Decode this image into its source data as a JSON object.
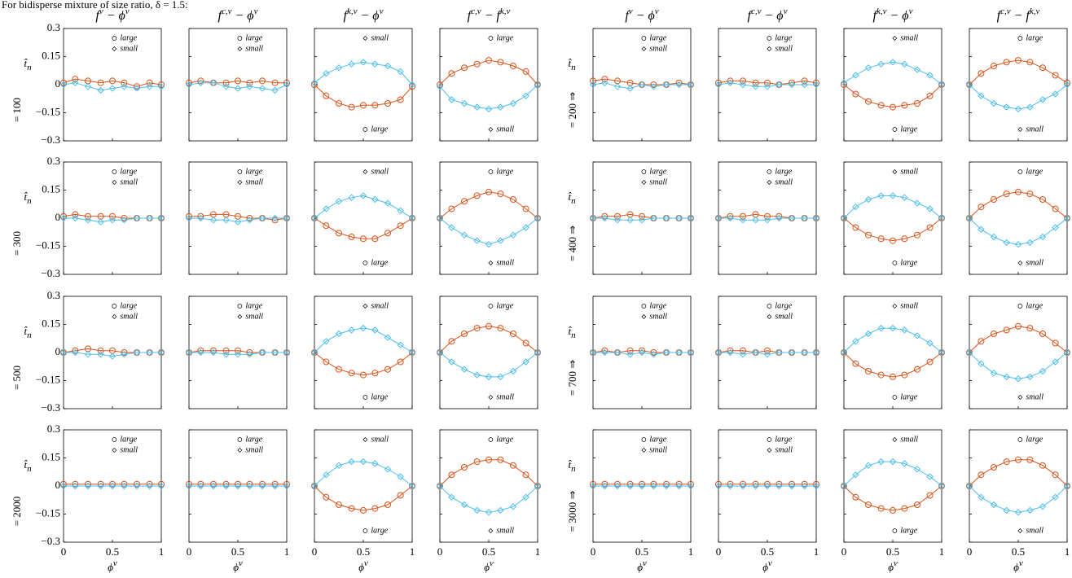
{
  "chart_data": {
    "type": "scatter-grid",
    "title": "For bidisperse mixture of size ratio, δ = 1.5:",
    "xlabel": [
      "ϕ",
      "ν"
    ],
    "row_symbol": [
      "t̂",
      "n"
    ],
    "xlim": [
      0,
      1
    ],
    "ylim": [
      -0.3,
      0.3
    ],
    "xticks": [
      0,
      0.5,
      1
    ],
    "yticks": [
      {
        "value": -0.3,
        "label": "−0.3"
      },
      {
        "value": -0.15,
        "label": "−0.15"
      },
      0,
      0.15,
      0.3
    ],
    "columns": [
      {
        "title": [
          "f",
          "ν",
          " − ϕ",
          "ν"
        ],
        "legend": [
          "top",
          "top"
        ]
      },
      {
        "title": [
          "f",
          "c,ν",
          " − ϕ",
          "ν"
        ],
        "legend": [
          "top",
          "top"
        ]
      },
      {
        "title": [
          "f",
          "k,ν",
          " − ϕ",
          "ν"
        ],
        "legend": [
          "bottom",
          "top"
        ]
      },
      {
        "title": [
          "f",
          "c,ν",
          " − f",
          "k,ν"
        ],
        "legend": [
          "top",
          "bottom"
        ]
      }
    ],
    "rows": [
      [
        "= 100",
        "= 200 ⇒"
      ],
      [
        "= 300",
        "= 400 ⇒"
      ],
      [
        "= 500",
        "= 700 ⇒"
      ],
      [
        "= 2000",
        "= 3000 ⇒"
      ]
    ],
    "series": [
      {
        "name": "large",
        "marker": "circle",
        "color": "#d95319"
      },
      {
        "name": "small",
        "marker": "diamond",
        "color": "#4dbeee"
      }
    ],
    "x": [
      0,
      0.12,
      0.25,
      0.38,
      0.5,
      0.62,
      0.75,
      0.88,
      1
    ],
    "panels": [
      {
        "values": [
          [
            0.01,
            0.03,
            0.02,
            0.01,
            0.02,
            0.01,
            -0.01,
            0.01,
            0
          ],
          [
            0,
            0.01,
            -0.01,
            -0.03,
            -0.02,
            -0.01,
            -0.02,
            -0.01,
            -0.01
          ]
        ]
      },
      {
        "values": [
          [
            0.01,
            0.02,
            0.01,
            0.01,
            0.02,
            0.01,
            0.02,
            0.01,
            0.01
          ],
          [
            0,
            0.01,
            0.01,
            -0.01,
            -0.02,
            -0.01,
            -0.02,
            -0.03,
            0
          ]
        ]
      },
      {
        "values": [
          [
            0,
            -0.06,
            -0.1,
            -0.12,
            -0.11,
            -0.11,
            -0.1,
            -0.08,
            -0.01
          ],
          [
            0.01,
            0.06,
            0.09,
            0.11,
            0.12,
            0.11,
            0.1,
            0.07,
            0
          ]
        ]
      },
      {
        "values": [
          [
            0,
            0.06,
            0.09,
            0.11,
            0.13,
            0.12,
            0.1,
            0.07,
            0
          ],
          [
            -0.01,
            -0.08,
            -0.1,
            -0.12,
            -0.13,
            -0.12,
            -0.1,
            -0.06,
            0
          ]
        ]
      },
      {
        "values": [
          [
            0.02,
            0.03,
            0.02,
            0.01,
            0,
            0,
            0,
            0.01,
            0
          ],
          [
            0,
            0.01,
            -0.01,
            -0.02,
            0,
            -0.01,
            0,
            0,
            0
          ]
        ]
      },
      {
        "values": [
          [
            0.01,
            0.02,
            0.02,
            0.01,
            0.01,
            0,
            0.01,
            0.02,
            0.01
          ],
          [
            0,
            0.01,
            0,
            -0.01,
            -0.01,
            0,
            0,
            0,
            0
          ]
        ]
      },
      {
        "values": [
          [
            0,
            -0.05,
            -0.09,
            -0.11,
            -0.12,
            -0.11,
            -0.1,
            -0.06,
            0
          ],
          [
            0.01,
            0.05,
            0.09,
            0.11,
            0.12,
            0.11,
            0.08,
            0.05,
            0
          ]
        ]
      },
      {
        "values": [
          [
            0,
            0.06,
            0.1,
            0.12,
            0.13,
            0.12,
            0.09,
            0.05,
            0.01
          ],
          [
            0,
            -0.06,
            -0.1,
            -0.12,
            -0.13,
            -0.12,
            -0.08,
            -0.05,
            0
          ]
        ]
      },
      {
        "values": [
          [
            0.01,
            0.02,
            0.01,
            0.01,
            0.01,
            0,
            0,
            0,
            0
          ],
          [
            0,
            0,
            -0.01,
            -0.02,
            -0.01,
            -0.01,
            0,
            0,
            0
          ]
        ]
      },
      {
        "values": [
          [
            0.01,
            0.01,
            0.02,
            0.02,
            0.01,
            0,
            0,
            -0.01,
            0
          ],
          [
            0,
            0,
            -0.01,
            -0.01,
            -0.02,
            -0.01,
            0,
            0,
            0
          ]
        ]
      },
      {
        "values": [
          [
            0,
            -0.04,
            -0.08,
            -0.1,
            -0.11,
            -0.11,
            -0.08,
            -0.04,
            0
          ],
          [
            0,
            0.05,
            0.09,
            0.11,
            0.12,
            0.1,
            0.08,
            0.04,
            0
          ]
        ]
      },
      {
        "values": [
          [
            0,
            0.05,
            0.09,
            0.12,
            0.14,
            0.13,
            0.1,
            0.05,
            0
          ],
          [
            0,
            -0.05,
            -0.09,
            -0.12,
            -0.14,
            -0.12,
            -0.09,
            -0.05,
            0
          ]
        ]
      },
      {
        "values": [
          [
            0,
            0.01,
            0.01,
            0.02,
            0.01,
            0,
            0,
            0,
            0
          ],
          [
            0,
            0,
            -0.01,
            -0.01,
            -0.01,
            0,
            0,
            0,
            0
          ]
        ]
      },
      {
        "values": [
          [
            0,
            0.01,
            0.01,
            0.02,
            0.01,
            0.01,
            0,
            0,
            0
          ],
          [
            0,
            0,
            -0.01,
            -0.01,
            -0.01,
            0,
            0,
            0,
            0
          ]
        ]
      },
      {
        "values": [
          [
            0,
            -0.05,
            -0.09,
            -0.11,
            -0.12,
            -0.11,
            -0.09,
            -0.05,
            0
          ],
          [
            0,
            0.06,
            0.1,
            0.12,
            0.12,
            0.11,
            0.08,
            0.05,
            0
          ]
        ]
      },
      {
        "values": [
          [
            0,
            0.06,
            0.1,
            0.13,
            0.14,
            0.13,
            0.1,
            0.05,
            0
          ],
          [
            0,
            -0.06,
            -0.1,
            -0.13,
            -0.14,
            -0.13,
            -0.1,
            -0.05,
            0
          ]
        ]
      },
      {
        "values": [
          [
            0,
            0.01,
            0.02,
            0.01,
            0.01,
            0,
            0,
            0,
            0
          ],
          [
            0,
            0,
            -0.01,
            -0.01,
            -0.02,
            -0.01,
            0,
            0,
            0
          ]
        ]
      },
      {
        "values": [
          [
            0,
            0.01,
            0.01,
            0.01,
            0.01,
            0,
            0,
            0,
            0
          ],
          [
            0,
            0,
            0,
            -0.01,
            -0.01,
            -0.01,
            0,
            0,
            0
          ]
        ]
      },
      {
        "values": [
          [
            0,
            -0.05,
            -0.09,
            -0.11,
            -0.12,
            -0.11,
            -0.09,
            -0.05,
            0
          ],
          [
            0,
            0.06,
            0.1,
            0.12,
            0.13,
            0.12,
            0.08,
            0.04,
            0
          ]
        ]
      },
      {
        "values": [
          [
            0,
            0.06,
            0.1,
            0.13,
            0.14,
            0.13,
            0.1,
            0.05,
            0
          ],
          [
            0,
            -0.05,
            -0.09,
            -0.12,
            -0.13,
            -0.13,
            -0.1,
            -0.05,
            0
          ]
        ]
      },
      {
        "values": [
          [
            0,
            0.01,
            0,
            0.01,
            0.01,
            0,
            0,
            0,
            0
          ],
          [
            0,
            0,
            0,
            -0.01,
            0,
            -0.01,
            0,
            0,
            0
          ]
        ]
      },
      {
        "values": [
          [
            0,
            0.01,
            0.01,
            0,
            0.01,
            0,
            0,
            0,
            0
          ],
          [
            0,
            0,
            -0.01,
            0,
            -0.01,
            0,
            0,
            0,
            0
          ]
        ]
      },
      {
        "values": [
          [
            0,
            -0.06,
            -0.1,
            -0.12,
            -0.13,
            -0.12,
            -0.09,
            -0.05,
            0
          ],
          [
            0,
            0.06,
            0.1,
            0.13,
            0.13,
            0.12,
            0.09,
            0.05,
            0
          ]
        ]
      },
      {
        "values": [
          [
            0,
            0.06,
            0.1,
            0.12,
            0.14,
            0.13,
            0.1,
            0.05,
            0
          ],
          [
            0,
            -0.06,
            -0.11,
            -0.13,
            -0.14,
            -0.13,
            -0.1,
            -0.05,
            0
          ]
        ]
      },
      {
        "values": [
          [
            0.01,
            0.01,
            0.01,
            0.01,
            0.01,
            0.01,
            0.01,
            0.01,
            0.01
          ],
          [
            0,
            0,
            0,
            0,
            0,
            0,
            0,
            0,
            0
          ]
        ]
      },
      {
        "values": [
          [
            0.01,
            0.01,
            0.01,
            0.01,
            0.01,
            0.01,
            0.01,
            0.01,
            0.01
          ],
          [
            0,
            0,
            0,
            0,
            0,
            0,
            0,
            0,
            0
          ]
        ]
      },
      {
        "values": [
          [
            0,
            -0.06,
            -0.1,
            -0.12,
            -0.13,
            -0.12,
            -0.1,
            -0.05,
            0
          ],
          [
            0,
            0.06,
            0.11,
            0.13,
            0.13,
            0.12,
            0.09,
            0.05,
            0
          ]
        ]
      },
      {
        "values": [
          [
            0,
            0.06,
            0.1,
            0.13,
            0.14,
            0.14,
            0.11,
            0.06,
            0
          ],
          [
            0,
            -0.06,
            -0.1,
            -0.13,
            -0.14,
            -0.13,
            -0.11,
            -0.06,
            0
          ]
        ]
      },
      {
        "values": [
          [
            0.01,
            0.01,
            0.01,
            0.01,
            0.01,
            0.01,
            0.01,
            0.01,
            0.01
          ],
          [
            0,
            0,
            0,
            0,
            0,
            0,
            0,
            0,
            0
          ]
        ]
      },
      {
        "values": [
          [
            0.01,
            0.01,
            0.01,
            0.01,
            0.01,
            0.01,
            0.01,
            0.01,
            0.01
          ],
          [
            0,
            0,
            0,
            0,
            0,
            0,
            0,
            0,
            0
          ]
        ]
      },
      {
        "values": [
          [
            0,
            -0.06,
            -0.1,
            -0.12,
            -0.13,
            -0.12,
            -0.1,
            -0.05,
            0
          ],
          [
            0,
            0.06,
            0.11,
            0.13,
            0.13,
            0.12,
            0.09,
            0.05,
            0
          ]
        ]
      },
      {
        "values": [
          [
            0,
            0.06,
            0.1,
            0.13,
            0.14,
            0.14,
            0.11,
            0.06,
            0
          ],
          [
            0,
            -0.06,
            -0.1,
            -0.13,
            -0.14,
            -0.13,
            -0.11,
            -0.06,
            0
          ]
        ]
      }
    ]
  }
}
